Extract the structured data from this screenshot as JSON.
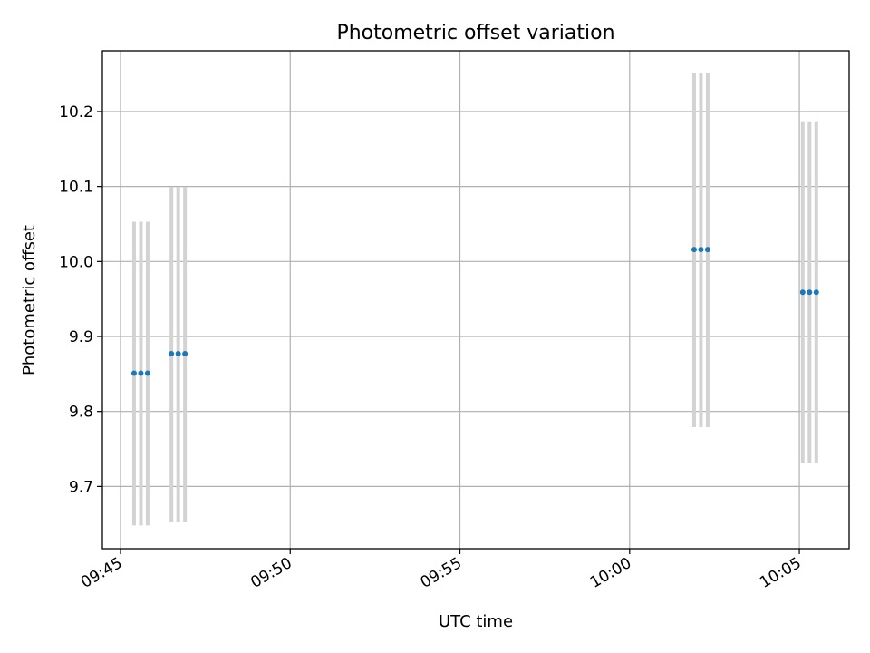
{
  "chart_data": {
    "type": "scatter",
    "title": "Photometric offset variation",
    "xlabel": "UTC time",
    "ylabel": "Photometric offset",
    "x_ticks": [
      "09:45",
      "09:50",
      "09:55",
      "10:00",
      "10:05"
    ],
    "y_ticks": [
      "9.7",
      "9.8",
      "9.9",
      "10.0",
      "10.1",
      "10.2"
    ],
    "xlim": [
      "09:44:28",
      "10:06:28"
    ],
    "ylim": [
      9.617,
      10.281
    ],
    "grid": true,
    "legend": "none",
    "colors": {
      "points": "#1f77b4",
      "error_bars": "#d3d3d3"
    },
    "series": [
      {
        "points": [
          {
            "t": "09:45:24",
            "y": 9.851,
            "ymin": 9.648,
            "ymax": 10.053
          },
          {
            "t": "09:45:36",
            "y": 9.851,
            "ymin": 9.648,
            "ymax": 10.053
          },
          {
            "t": "09:45:48",
            "y": 9.851,
            "ymin": 9.648,
            "ymax": 10.053
          },
          {
            "t": "09:46:30",
            "y": 9.877,
            "ymin": 9.652,
            "ymax": 10.099
          },
          {
            "t": "09:46:42",
            "y": 9.877,
            "ymin": 9.652,
            "ymax": 10.099
          },
          {
            "t": "09:46:54",
            "y": 9.877,
            "ymin": 9.652,
            "ymax": 10.099
          },
          {
            "t": "10:01:54",
            "y": 10.016,
            "ymin": 9.779,
            "ymax": 10.252
          },
          {
            "t": "10:02:06",
            "y": 10.016,
            "ymin": 9.779,
            "ymax": 10.252
          },
          {
            "t": "10:02:18",
            "y": 10.016,
            "ymin": 9.779,
            "ymax": 10.252
          },
          {
            "t": "10:05:06",
            "y": 9.959,
            "ymin": 9.731,
            "ymax": 10.187
          },
          {
            "t": "10:05:18",
            "y": 9.959,
            "ymin": 9.731,
            "ymax": 10.187
          },
          {
            "t": "10:05:30",
            "y": 9.959,
            "ymin": 9.731,
            "ymax": 10.187
          }
        ]
      }
    ]
  }
}
